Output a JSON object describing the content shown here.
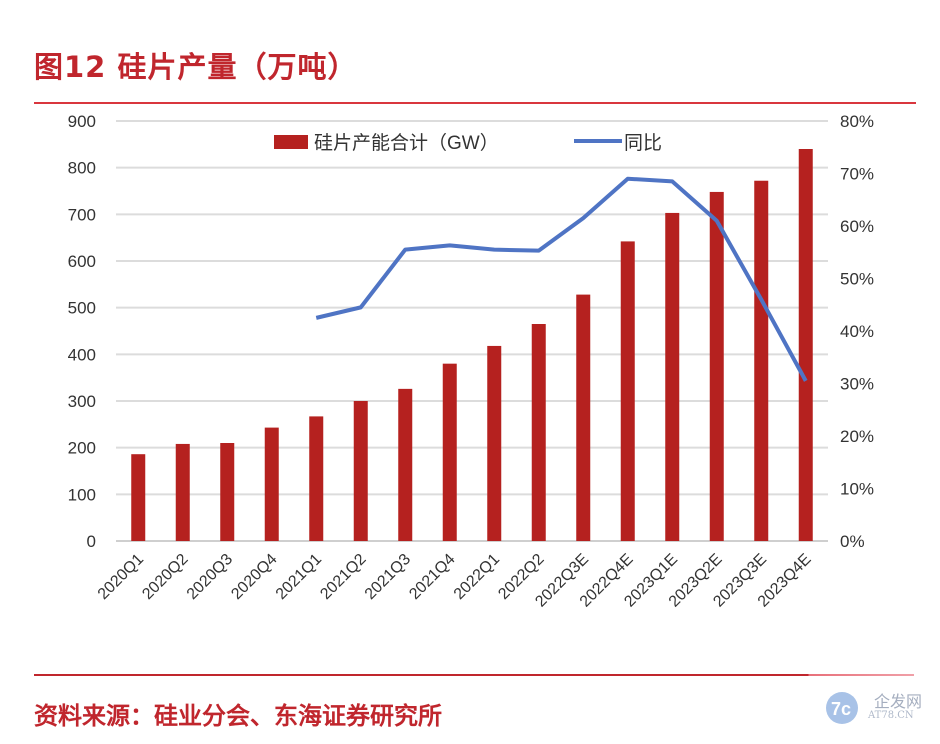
{
  "header": {
    "title": "图12  硅片产量（万吨）"
  },
  "footer": {
    "source": "资料来源：硅业分会、东海证券研究所"
  },
  "watermark": {
    "text": "企发网",
    "sub": "AT78.CN"
  },
  "chart_data": {
    "type": "bar+line",
    "categories": [
      "2020Q1",
      "2020Q2",
      "2020Q3",
      "2020Q4",
      "2021Q1",
      "2021Q2",
      "2021Q3",
      "2021Q4",
      "2022Q1",
      "2022Q2",
      "2022Q3E",
      "2022Q4E",
      "2023Q1E",
      "2023Q2E",
      "2023Q3E",
      "2023Q4E"
    ],
    "series": [
      {
        "name": "硅片产能合计（GW）",
        "type": "bar",
        "axis": "left",
        "color": "#b5211f",
        "values": [
          186,
          208,
          210,
          243,
          267,
          300,
          326,
          380,
          418,
          465,
          528,
          642,
          703,
          748,
          772,
          840
        ]
      },
      {
        "name": "同比",
        "type": "line",
        "axis": "right",
        "color": "#4f74c4",
        "values": [
          null,
          null,
          null,
          null,
          42.5,
          44.5,
          55.5,
          56.3,
          55.5,
          55.3,
          61.5,
          69.0,
          68.5,
          61.0,
          46.0,
          30.5
        ]
      }
    ],
    "left_axis": {
      "ylim": [
        0,
        900
      ],
      "ticks": [
        "0",
        "100",
        "200",
        "300",
        "400",
        "500",
        "600",
        "700",
        "800",
        "900"
      ]
    },
    "right_axis": {
      "ylim": [
        0,
        80
      ],
      "ticks": [
        "0%",
        "10%",
        "20%",
        "30%",
        "40%",
        "50%",
        "60%",
        "70%",
        "80%"
      ]
    },
    "grid": true,
    "legend": "top-center"
  }
}
